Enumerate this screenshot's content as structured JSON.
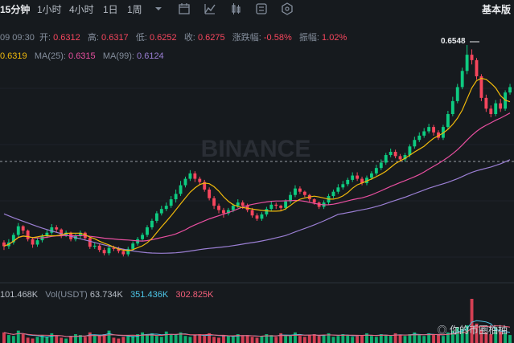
{
  "toolbar": {
    "intervals": [
      "15分钟",
      "1小时",
      "4小时",
      "1日",
      "1周"
    ],
    "active_interval": "15分钟",
    "right_label": "基本版",
    "icons": [
      "chevron-down-icon",
      "calendar-icon",
      "indicator-icon",
      "candle-style-icon",
      "settings-icon",
      "hexagon-icon"
    ]
  },
  "ohlc": {
    "time": "09 09:30",
    "open_label": "开:",
    "open": "0.6312",
    "high_label": "高:",
    "high": "0.6317",
    "low_label": "低:",
    "low": "0.6252",
    "close_label": "收:",
    "close": "0.6275",
    "change_label": "涨跌幅:",
    "change": "-0.58%",
    "amp_label": "振幅:",
    "amp": "1.02%"
  },
  "ma": {
    "ma7": "0.6319",
    "ma25_label": "MA(25):",
    "ma25": "0.6315",
    "ma99_label": "MA(99):",
    "ma99": "0.6124"
  },
  "volume": {
    "vol": "101.468K",
    "vol_usdt_label": "Vol(USDT)",
    "vol_usdt": "63.734K",
    "v2": "351.436K",
    "v3": "302.825K"
  },
  "price_marker": "0.6548",
  "watermark": "你的币圈柚柚",
  "watermark_logo": "BINANCE",
  "colors": {
    "up": "#0ecb81",
    "down": "#f6465d",
    "ma7": "#f0b90b",
    "ma25": "#e84fa0",
    "ma99": "#9b7fd4",
    "vol_ma1": "#4dc6e8",
    "vol_ma2": "#f25f7a"
  },
  "chart_data": {
    "type": "candlestick",
    "x": [
      1,
      2,
      3,
      4,
      5,
      6,
      7,
      8,
      9,
      10,
      11,
      12,
      13,
      14,
      15,
      16,
      17,
      18,
      19,
      20,
      21,
      22,
      23,
      24,
      25,
      26,
      27,
      28,
      29,
      30,
      31,
      32,
      33,
      34,
      35,
      36,
      37,
      38,
      39,
      40,
      41,
      42,
      43,
      44,
      45,
      46,
      47,
      48,
      49,
      50,
      51,
      52,
      53,
      54,
      55,
      56,
      57,
      58,
      59,
      60,
      61,
      62,
      63,
      64,
      65,
      66,
      67,
      68,
      69,
      70,
      71,
      72,
      73,
      74,
      75,
      76,
      77,
      78,
      79,
      80,
      81,
      82,
      83,
      84,
      85,
      86,
      87,
      88,
      89,
      90,
      91,
      92,
      93,
      94,
      95,
      96,
      97,
      98,
      99,
      100,
      101,
      102,
      103,
      104,
      105,
      106,
      107
    ],
    "open": [
      0.6182,
      0.6175,
      0.6182,
      0.6196,
      0.6212,
      0.6204,
      0.6188,
      0.6178,
      0.6186,
      0.6194,
      0.62,
      0.621,
      0.6206,
      0.6196,
      0.62,
      0.6188,
      0.6194,
      0.62,
      0.619,
      0.6174,
      0.6176,
      0.6168,
      0.6162,
      0.6172,
      0.617,
      0.6166,
      0.616,
      0.617,
      0.618,
      0.6188,
      0.6196,
      0.621,
      0.6222,
      0.6236,
      0.6244,
      0.625,
      0.6262,
      0.6272,
      0.6288,
      0.63,
      0.631,
      0.63,
      0.6294,
      0.628,
      0.6264,
      0.625,
      0.6242,
      0.6236,
      0.6242,
      0.625,
      0.6256,
      0.625,
      0.6242,
      0.6232,
      0.6226,
      0.6234,
      0.6244,
      0.6252,
      0.625,
      0.6246,
      0.6258,
      0.627,
      0.6282,
      0.6276,
      0.627,
      0.6262,
      0.6256,
      0.6248,
      0.6256,
      0.6268,
      0.6276,
      0.6284,
      0.629,
      0.6298,
      0.6306,
      0.63,
      0.6292,
      0.6302,
      0.631,
      0.632,
      0.633,
      0.6344,
      0.635,
      0.6342,
      0.6336,
      0.6344,
      0.636,
      0.6372,
      0.638,
      0.6388,
      0.6396,
      0.6386,
      0.6376,
      0.6396,
      0.642,
      0.6444,
      0.647,
      0.65,
      0.653,
      0.652,
      0.649,
      0.645,
      0.643,
      0.642,
      0.644,
      0.643,
      0.646
    ],
    "close": [
      0.6175,
      0.6182,
      0.6196,
      0.6212,
      0.6204,
      0.6188,
      0.6178,
      0.6186,
      0.6194,
      0.62,
      0.621,
      0.6206,
      0.6196,
      0.62,
      0.6188,
      0.6194,
      0.62,
      0.619,
      0.6174,
      0.6176,
      0.6168,
      0.6162,
      0.6172,
      0.617,
      0.6166,
      0.616,
      0.617,
      0.618,
      0.6188,
      0.6196,
      0.621,
      0.6222,
      0.6236,
      0.6244,
      0.625,
      0.6262,
      0.6272,
      0.6288,
      0.63,
      0.631,
      0.63,
      0.6294,
      0.628,
      0.6264,
      0.625,
      0.6242,
      0.6236,
      0.6242,
      0.625,
      0.6256,
      0.625,
      0.6242,
      0.6232,
      0.6226,
      0.6234,
      0.6244,
      0.6252,
      0.625,
      0.6246,
      0.6258,
      0.627,
      0.6282,
      0.6276,
      0.627,
      0.6262,
      0.6256,
      0.6248,
      0.6256,
      0.6268,
      0.6276,
      0.6284,
      0.629,
      0.6298,
      0.6306,
      0.63,
      0.6292,
      0.6302,
      0.631,
      0.632,
      0.633,
      0.6344,
      0.635,
      0.6342,
      0.6336,
      0.6344,
      0.636,
      0.6372,
      0.638,
      0.6388,
      0.6396,
      0.6386,
      0.6376,
      0.6396,
      0.642,
      0.6444,
      0.647,
      0.65,
      0.653,
      0.652,
      0.649,
      0.645,
      0.643,
      0.642,
      0.644,
      0.643,
      0.646,
      0.647
    ],
    "high": [
      0.6186,
      0.6188,
      0.62,
      0.6218,
      0.6214,
      0.6206,
      0.6192,
      0.619,
      0.6198,
      0.6206,
      0.6216,
      0.6214,
      0.6208,
      0.6204,
      0.6202,
      0.6198,
      0.6204,
      0.6202,
      0.6192,
      0.6182,
      0.618,
      0.6172,
      0.6176,
      0.6176,
      0.6174,
      0.617,
      0.6174,
      0.6184,
      0.6192,
      0.62,
      0.6214,
      0.6226,
      0.624,
      0.625,
      0.6256,
      0.6268,
      0.628,
      0.6296,
      0.6304,
      0.6316,
      0.6314,
      0.6304,
      0.6298,
      0.6284,
      0.6268,
      0.6254,
      0.6246,
      0.6246,
      0.6254,
      0.6262,
      0.626,
      0.6254,
      0.6246,
      0.6236,
      0.6238,
      0.6248,
      0.6258,
      0.6256,
      0.6252,
      0.6262,
      0.6276,
      0.6288,
      0.6286,
      0.6278,
      0.6272,
      0.6264,
      0.6258,
      0.626,
      0.6272,
      0.628,
      0.629,
      0.6296,
      0.6302,
      0.6312,
      0.6312,
      0.6304,
      0.6306,
      0.6314,
      0.6326,
      0.6336,
      0.6348,
      0.6356,
      0.6354,
      0.6346,
      0.6348,
      0.6364,
      0.6378,
      0.6386,
      0.6394,
      0.6402,
      0.64,
      0.639,
      0.64,
      0.6426,
      0.6452,
      0.6476,
      0.6506,
      0.6548,
      0.654,
      0.6524,
      0.6494,
      0.6456,
      0.6436,
      0.6446,
      0.6448,
      0.6464,
      0.6476
    ],
    "low": [
      0.6168,
      0.617,
      0.6178,
      0.6192,
      0.6198,
      0.6184,
      0.6172,
      0.6174,
      0.6182,
      0.619,
      0.6196,
      0.62,
      0.619,
      0.6192,
      0.6184,
      0.6184,
      0.619,
      0.6186,
      0.617,
      0.617,
      0.6164,
      0.6158,
      0.6158,
      0.6166,
      0.6162,
      0.6156,
      0.6156,
      0.6166,
      0.6176,
      0.6184,
      0.6192,
      0.6206,
      0.6218,
      0.6232,
      0.624,
      0.6246,
      0.6256,
      0.6268,
      0.6284,
      0.6296,
      0.6294,
      0.6288,
      0.6276,
      0.626,
      0.6244,
      0.6236,
      0.6228,
      0.6232,
      0.6238,
      0.6246,
      0.6244,
      0.6238,
      0.6228,
      0.6222,
      0.6222,
      0.623,
      0.624,
      0.6244,
      0.624,
      0.6242,
      0.6254,
      0.6266,
      0.6272,
      0.6266,
      0.6256,
      0.6252,
      0.6244,
      0.6244,
      0.6252,
      0.6264,
      0.6272,
      0.628,
      0.6286,
      0.6294,
      0.6296,
      0.6288,
      0.6288,
      0.6298,
      0.6306,
      0.6316,
      0.6326,
      0.634,
      0.6338,
      0.6332,
      0.6332,
      0.634,
      0.6356,
      0.6368,
      0.6376,
      0.6384,
      0.638,
      0.6372,
      0.6372,
      0.6392,
      0.6416,
      0.644,
      0.6466,
      0.6494,
      0.6512,
      0.6484,
      0.6444,
      0.6424,
      0.6414,
      0.6416,
      0.6424,
      0.6426,
      0.6456
    ],
    "volume": [
      12,
      9,
      8,
      14,
      10,
      6,
      5,
      7,
      9,
      7,
      11,
      8,
      6,
      5,
      8,
      10,
      9,
      7,
      12,
      9,
      8,
      10,
      14,
      6,
      5,
      7,
      9,
      8,
      10,
      12,
      9,
      11,
      8,
      7,
      13,
      10,
      9,
      12,
      8,
      7,
      9,
      10,
      8,
      11,
      7,
      6,
      9,
      8,
      7,
      10,
      8,
      9,
      7,
      6,
      8,
      10,
      9,
      7,
      11,
      8,
      9,
      12,
      8,
      7,
      9,
      10,
      8,
      9,
      11,
      7,
      8,
      10,
      9,
      7,
      8,
      9,
      11,
      8,
      7,
      10,
      9,
      8,
      11,
      9,
      8,
      10,
      12,
      9,
      8,
      11,
      9,
      10,
      8,
      12,
      14,
      18,
      16,
      20,
      50,
      22,
      15,
      12,
      10,
      18,
      13,
      11,
      9
    ],
    "ma_labels": [
      "MA(25)",
      "MA(99)"
    ],
    "ylim": [
      0.614,
      0.656
    ]
  }
}
